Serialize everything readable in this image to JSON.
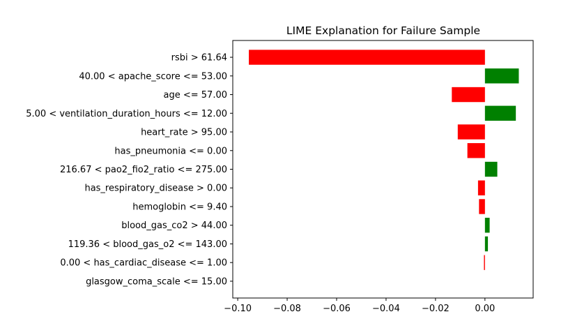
{
  "chart_data": {
    "type": "bar",
    "orientation": "horizontal",
    "title": "LIME Explanation for Failure Sample",
    "xlabel": "",
    "ylabel": "",
    "xlim": [
      -0.102,
      0.0195
    ],
    "xticks": [
      -0.1,
      -0.08,
      -0.06,
      -0.04,
      -0.02,
      0.0
    ],
    "xtick_labels": [
      "−0.10",
      "−0.08",
      "−0.06",
      "−0.04",
      "−0.02",
      "0.00"
    ],
    "grid": false,
    "colors": {
      "positive": "#008000",
      "negative": "#ff0000"
    },
    "categories": [
      "rsbi > 61.64",
      "40.00 < apache_score <= 53.00",
      "age <= 57.00",
      "5.00 < ventilation_duration_hours <= 12.00",
      "heart_rate > 95.00",
      "has_pneumonia <= 0.00",
      "216.67 < pao2_fio2_ratio <= 275.00",
      "has_respiratory_disease > 0.00",
      "hemoglobin <= 9.40",
      "blood_gas_co2 > 44.00",
      "119.36 < blood_gas_o2 <= 143.00",
      "0.00 < has_cardiac_disease <= 1.00",
      "glasgow_coma_scale <= 15.00"
    ],
    "values": [
      -0.0955,
      0.0137,
      -0.0134,
      0.0125,
      -0.011,
      -0.0071,
      0.005,
      -0.0028,
      -0.0024,
      0.0019,
      0.0012,
      -0.0004,
      0.0
    ]
  }
}
